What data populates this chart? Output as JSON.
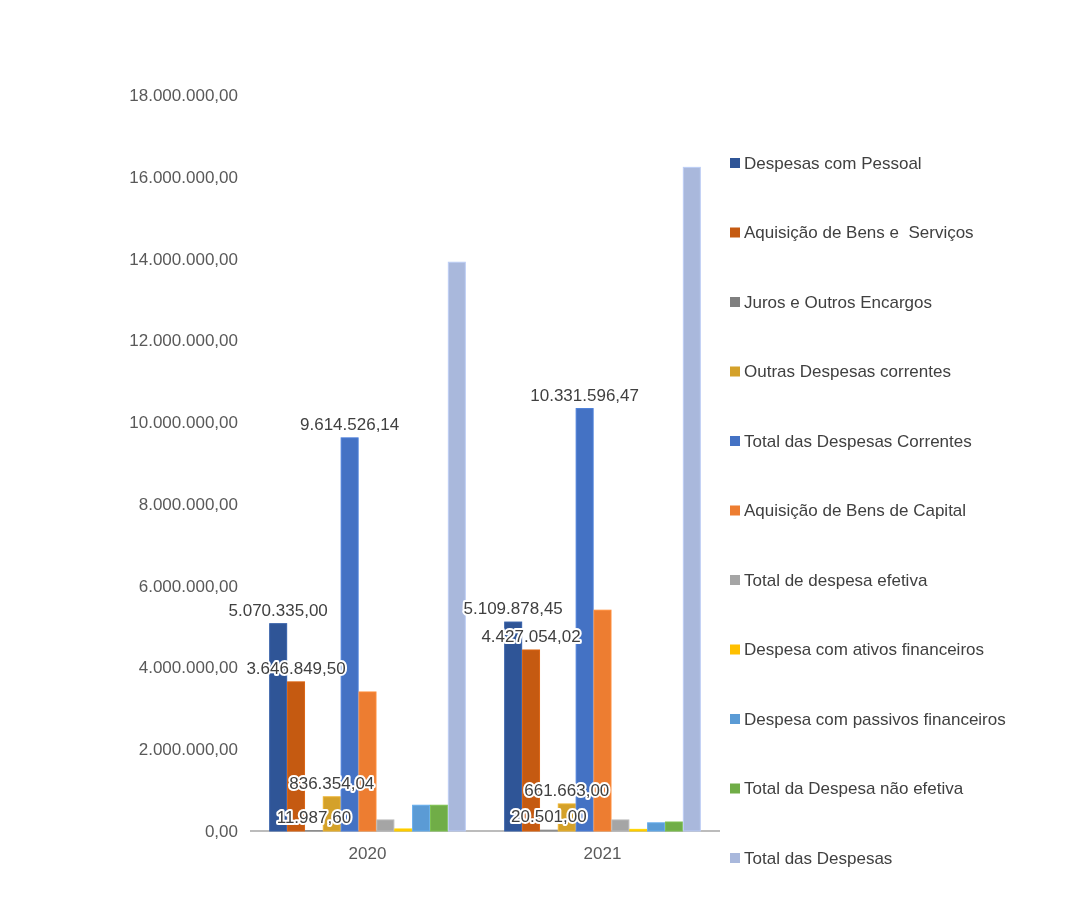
{
  "chart_data": {
    "type": "bar",
    "categories": [
      "2020",
      "2021"
    ],
    "series": [
      {
        "name": "Despesas com Pessoal",
        "color": "#2f5597",
        "values": [
          5070335.0,
          5109878.45
        ],
        "value_labels": [
          "5.070.335,00",
          "5.109.878,45"
        ]
      },
      {
        "name": "Aquisição de Bens e  Serviços",
        "color": "#c55a11",
        "values": [
          3646849.5,
          4427054.02
        ],
        "value_labels": [
          "3.646.849,50",
          "4.427.054,02"
        ]
      },
      {
        "name": "Juros e Outros Encargos",
        "color": "#7f7f7f",
        "values": [
          11987.6,
          20501.0
        ],
        "value_labels": [
          "11.987,60",
          "20.501,00"
        ]
      },
      {
        "name": "Outras Despesas correntes",
        "color": "#d4a12a",
        "values": [
          836354.04,
          661663.0
        ],
        "value_labels": [
          "836.354,04",
          "661.663,00"
        ]
      },
      {
        "name": "Total das Despesas Correntes",
        "color": "#4472c4",
        "values": [
          9614526.14,
          10331596.47
        ],
        "value_labels": [
          "9.614.526,14",
          "10.331.596,47"
        ]
      },
      {
        "name": "Aquisição de Bens de Capital",
        "color": "#ed7d31",
        "values": [
          3400000,
          5400000
        ]
      },
      {
        "name": "Total de despesa efetiva",
        "color": "#a5a5a5",
        "values": [
          270000,
          270000
        ]
      },
      {
        "name": "Despesa com ativos financeiros",
        "color": "#ffc000",
        "values": [
          50000,
          40000
        ]
      },
      {
        "name": "Despesa com passivos financeiros",
        "color": "#5b9bd5",
        "values": [
          630000,
          200000
        ]
      },
      {
        "name": "Total da Despesa não efetiva",
        "color": "#70ad47",
        "values": [
          630000,
          220000
        ]
      },
      {
        "name": "Total das Despesas",
        "color": "#a9b8dc",
        "values": [
          13910000,
          16230000
        ]
      }
    ],
    "ylim": [
      0,
      18000000
    ],
    "yticks": [
      {
        "value": 0,
        "label": "0,00"
      },
      {
        "value": 2000000,
        "label": "2.000.000,00"
      },
      {
        "value": 4000000,
        "label": "4.000.000,00"
      },
      {
        "value": 6000000,
        "label": "6.000.000,00"
      },
      {
        "value": 8000000,
        "label": "8.000.000,00"
      },
      {
        "value": 10000000,
        "label": "10.000.000,00"
      },
      {
        "value": 12000000,
        "label": "12.000.000,00"
      },
      {
        "value": 14000000,
        "label": "14.000.000,00"
      },
      {
        "value": 16000000,
        "label": "16.000.000,00"
      },
      {
        "value": 18000000,
        "label": "18.000.000,00"
      }
    ],
    "legend": "right",
    "grid": false
  }
}
